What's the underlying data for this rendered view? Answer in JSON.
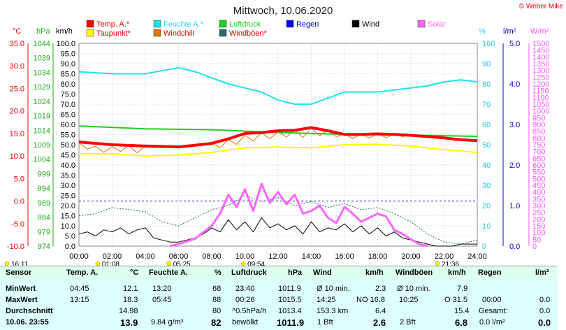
{
  "title": "Mittwoch, 10.06.2020",
  "credit": "© Weber Mike",
  "colors": {
    "temp": "#ff0000",
    "feuchte": "#22e0e8",
    "luftdruck": "#22cc22",
    "regen": "#0000ee",
    "wind": "#000000",
    "solar": "#ff66ff",
    "taupunkt": "#ffff00",
    "windchill": "#dd7700",
    "windboeen": "#2a6b6b",
    "uv": "#ff00ff"
  },
  "legend": [
    {
      "label": "Temp. A.*",
      "color": "#ff0000"
    },
    {
      "label": "Feuchte A.*",
      "color": "#22e0e8"
    },
    {
      "label": "Luftdruck",
      "color": "#22cc22"
    },
    {
      "label": "Regen",
      "color": "#0000ee"
    },
    {
      "label": "Wind",
      "color": "#000000"
    },
    {
      "label": "Solar",
      "color": "#ff66ff"
    },
    {
      "label": "Taupunkt*",
      "color": "#ffff00"
    },
    {
      "label": "Windchill",
      "color": "#dd7700"
    },
    {
      "label": "Windböen*",
      "color": "#2a6b6b"
    }
  ],
  "axis_units": {
    "celsius": "°C",
    "hpa": "hPa",
    "kmh": "km/h",
    "percent": "%",
    "rain": "l/m²",
    "solar": "W/m²"
  },
  "axes": {
    "celsius": [
      "35.0",
      "30.0",
      "25.0",
      "20.0",
      "15.0",
      "10.0",
      "5.0",
      "0.0",
      "-5.0",
      "-10.0"
    ],
    "hpa": [
      "1044",
      "1039",
      "1034",
      "1029",
      "1024",
      "1019",
      "1014",
      "1009",
      "1004",
      "999",
      "994",
      "989",
      "984",
      "979",
      "974"
    ],
    "kmh": [
      "100.0",
      "95.0",
      "90.0",
      "85.0",
      "80.0",
      "75.0",
      "70.0",
      "65.0",
      "60.0",
      "55.0",
      "50.0",
      "45.0",
      "40.0",
      "35.0",
      "30.0",
      "25.0",
      "20.0",
      "15.0",
      "10.0",
      "5.0",
      "0.0"
    ],
    "percent": [
      "100",
      "90",
      "80",
      "70",
      "60",
      "50",
      "40",
      "30",
      "20",
      "10",
      "0"
    ],
    "rain": [
      "5.0",
      "4.0",
      "3.0",
      "2.0",
      "1.0",
      "0.0"
    ],
    "solar": [
      "1500",
      "1450",
      "1400",
      "1350",
      "1300",
      "1250",
      "1200",
      "1150",
      "1100",
      "1050",
      "1000",
      "950",
      "900",
      "850",
      "800",
      "750",
      "700",
      "650",
      "600",
      "550",
      "500",
      "450",
      "400",
      "350",
      "300",
      "250",
      "200",
      "150",
      "100",
      "50",
      "0"
    ],
    "time": [
      "00:00",
      "02:00",
      "04:00",
      "06:00",
      "08:00",
      "10:00",
      "12:00",
      "14:00",
      "16:00",
      "18:00",
      "20:00",
      "22:00",
      "24:00"
    ]
  },
  "markers": {
    "moonrise": "01:08",
    "sunrise": "05:25",
    "solar_max": "09:54",
    "sunset": "21:36",
    "moonset": "16:11"
  },
  "chart_data": {
    "type": "line",
    "x_unit": "hour",
    "x_range": [
      0,
      24
    ],
    "ylim_kmh": [
      0,
      100
    ],
    "series": [
      {
        "name": "Temp. A.*",
        "axis": "celsius",
        "x": [
          0,
          2,
          4,
          6,
          8,
          9,
          10,
          11,
          12,
          13,
          14,
          15,
          16,
          17,
          18,
          19,
          20,
          21,
          22,
          23,
          24
        ],
        "values": [
          13.1,
          12.5,
          12.2,
          12.0,
          12.8,
          13.8,
          15.0,
          15.2,
          15.6,
          15.7,
          16.3,
          15.6,
          14.8,
          14.8,
          14.9,
          14.8,
          14.6,
          14.3,
          14.0,
          13.6,
          13.4
        ]
      },
      {
        "name": "Feuchte A.*",
        "axis": "percent",
        "x": [
          0,
          2,
          4,
          6,
          7,
          8,
          9,
          10,
          11,
          12,
          13,
          14,
          15,
          16,
          17,
          18,
          19,
          20,
          21,
          22,
          23,
          24
        ],
        "values": [
          86,
          85,
          85,
          88,
          86,
          83,
          80,
          78,
          76,
          72,
          70,
          70,
          73,
          76,
          76,
          76,
          77,
          78,
          79,
          81,
          82,
          81
        ]
      },
      {
        "name": "Taupunkt*",
        "axis": "celsius",
        "x": [
          0,
          2,
          4,
          6,
          8,
          10,
          12,
          14,
          16,
          18,
          20,
          22,
          24
        ],
        "values": [
          10.5,
          10.5,
          10.0,
          10.2,
          10.8,
          11.8,
          12.0,
          11.8,
          12.5,
          12.6,
          12.2,
          11.4,
          10.8
        ]
      },
      {
        "name": "Luftdruck",
        "axis": "hpa",
        "x": [
          0,
          4,
          8,
          12,
          16,
          20,
          24
        ],
        "values": [
          1015.5,
          1014.5,
          1014.2,
          1013.2,
          1012.6,
          1012.3,
          1011.9
        ]
      },
      {
        "name": "Windchill",
        "axis": "celsius",
        "x": [
          0,
          0.5,
          1,
          1.5,
          2,
          2.5,
          3,
          3.5,
          4,
          5,
          6,
          7,
          8,
          8.5,
          9,
          9.5,
          10,
          10.5,
          11,
          11.5,
          12,
          12.5,
          13,
          13.5,
          14,
          14.5,
          15,
          15.5,
          16,
          16.5,
          17,
          17.5,
          18,
          18.5,
          19,
          19.5,
          20
        ],
        "values": [
          13.0,
          11.5,
          12.2,
          10.8,
          12.1,
          11.0,
          12.3,
          10.7,
          12.2,
          11.9,
          12.0,
          12.5,
          12.8,
          11.9,
          13.6,
          12.6,
          14.6,
          13.3,
          15.2,
          13.8,
          15.4,
          14.2,
          15.8,
          14.1,
          16.2,
          14.5,
          15.8,
          14.3,
          14.9,
          13.9,
          14.8,
          14.0,
          14.9,
          14.1,
          14.8,
          14.3,
          14.6
        ]
      },
      {
        "name": "Wind",
        "axis": "kmh",
        "x": [
          0,
          0.5,
          1,
          1.5,
          2,
          2.5,
          3,
          3.5,
          4,
          4.5,
          5,
          5.5,
          6,
          6.5,
          7,
          7.5,
          8,
          8.5,
          9,
          9.5,
          10,
          10.5,
          11,
          11.5,
          12,
          12.5,
          13,
          13.5,
          14,
          14.5,
          15,
          15.5,
          16,
          16.5,
          17,
          17.5,
          18,
          18.5,
          19,
          19.5,
          20,
          20.5,
          21,
          21.5,
          22,
          22.5,
          23,
          23.5,
          24
        ],
        "values": [
          6,
          7,
          5,
          8,
          7,
          9,
          6,
          8,
          9,
          4,
          3,
          2,
          2,
          3,
          4,
          6,
          9,
          7,
          13,
          8,
          12,
          7,
          14,
          9,
          11,
          8,
          10,
          6,
          12,
          7,
          9,
          8,
          11,
          7,
          10,
          6,
          9,
          5,
          7,
          4,
          3,
          2,
          1,
          0,
          0,
          0,
          1,
          1,
          1
        ]
      },
      {
        "name": "Windböen*",
        "axis": "kmh",
        "x": [
          0,
          1,
          2,
          3,
          4,
          5,
          6,
          7,
          8,
          9,
          10,
          11,
          12,
          13,
          14,
          15,
          16,
          17,
          18,
          19,
          20,
          21,
          22,
          23,
          24
        ],
        "values": [
          15,
          16,
          19,
          18,
          17,
          12,
          10,
          14,
          18,
          20,
          25,
          22,
          24,
          20,
          22,
          19,
          21,
          18,
          19,
          16,
          12,
          6,
          2,
          1,
          3
        ]
      },
      {
        "name": "Solar",
        "axis": "solar",
        "x": [
          5.5,
          6,
          7,
          8,
          8.5,
          9,
          9.5,
          10,
          10.5,
          11,
          11.5,
          12,
          12.5,
          13,
          13.5,
          14,
          14.5,
          15,
          15.5,
          16,
          16.5,
          17,
          17.5,
          18,
          18.5,
          19,
          19.5,
          20,
          20.5,
          21
        ],
        "values": [
          0,
          15,
          55,
          150,
          240,
          380,
          290,
          420,
          260,
          460,
          320,
          400,
          310,
          380,
          240,
          260,
          300,
          210,
          170,
          290,
          240,
          180,
          210,
          240,
          220,
          120,
          90,
          50,
          15,
          0
        ]
      }
    ]
  },
  "table": {
    "headers": {
      "sensor": "Sensor",
      "temp": "Temp. A.",
      "temp_unit": "°C",
      "feuchte": "Feuchte A.",
      "feuchte_unit": "%",
      "druck": "Luftdruck",
      "druck_unit": "hPa",
      "wind": "Wind",
      "wind_unit": "km/h",
      "boeen": "Windböen",
      "boeen_unit": "km/h",
      "regen": "Regen",
      "regen_unit": "l/m²"
    },
    "rows": {
      "min": {
        "label": "MinWert",
        "temp_time": "04:45",
        "temp": "12.1",
        "feuchte_time": "13:20",
        "feuchte": "68",
        "druck_time": "23:40",
        "druck": "1011.9",
        "wind_label": "Ø 10 min.",
        "wind": "2.3",
        "boeen_label": "Ø 10 min.",
        "boeen": "7.9",
        "regen_label": "",
        "regen": ""
      },
      "max": {
        "label": "MaxWert",
        "temp_time": "13:15",
        "temp": "18.3",
        "feuchte_time": "05:45",
        "feuchte": "88",
        "druck_time": "00:26",
        "druck": "1015.5",
        "wind_time": "14:25",
        "wind_dir": "NO 16.8",
        "boeen_time": "10:25",
        "boeen": "O 31.5",
        "regen_time": "00:00",
        "regen": "0.0"
      },
      "avg": {
        "label": "Durchschnitt",
        "temp": "14.98",
        "feuchte": "80",
        "druck_trend": "^0.5hPa/h",
        "druck": "1013.4",
        "wind_dist": "153.3 km",
        "wind": "6.4",
        "boeen": "15.4",
        "regen_label": "Gesamt:",
        "regen": "0.0"
      },
      "now": {
        "label": "10.06. 23:55",
        "temp": "13.9",
        "feuchte_abs": "9.84 g/m³",
        "feuchte": "82",
        "druck_text": "bewölkt",
        "druck": "1011.9",
        "wind_bft": "1 Bft",
        "wind": "2.6",
        "boeen_bft": "2 Bft",
        "boeen": "6.8",
        "regen_text": "0.0 l/m²",
        "regen": "0.0"
      }
    }
  }
}
